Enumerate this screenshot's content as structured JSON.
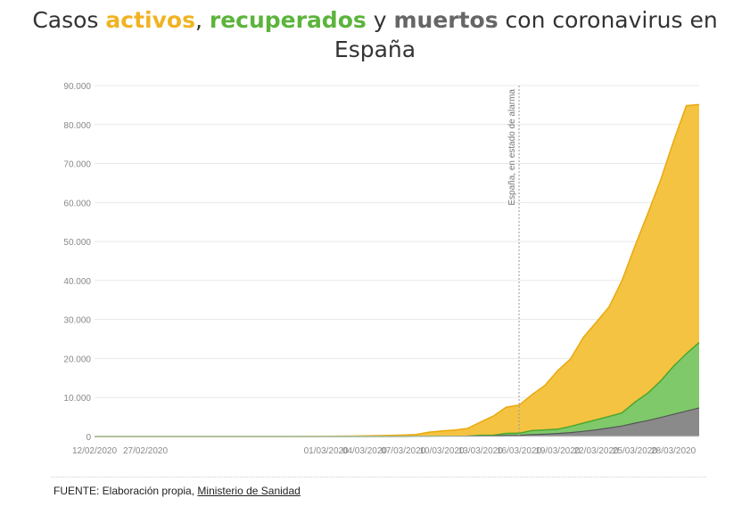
{
  "title": {
    "prefix": "Casos ",
    "word_activos": "activos",
    "comma": ", ",
    "word_recuperados": "recuperados",
    "y": " y ",
    "word_muertos": "muertos",
    "suffix_line1": " con coronavirus en",
    "line2": "España"
  },
  "colors": {
    "activos": "#f5c342",
    "activos_title": "#f0b323",
    "recuperados": "#7fc96b",
    "recuperados_title": "#5cb43c",
    "muertos": "#8a8a8a",
    "muertos_title": "#666666",
    "grid": "#e8e8e8",
    "annotation": "#999999"
  },
  "footer": {
    "prefix": "FUENTE: Elaboración propia, ",
    "link": "Ministerio de Sanidad"
  },
  "chart_data": {
    "type": "area",
    "stacked": true,
    "x": [
      "12/02/2020",
      "13/02/2020",
      "14/02/2020",
      "15/02/2020",
      "16/02/2020",
      "17/02/2020",
      "18/02/2020",
      "19/02/2020",
      "20/02/2020",
      "21/02/2020",
      "22/02/2020",
      "23/02/2020",
      "24/02/2020",
      "25/02/2020",
      "26/02/2020",
      "27/02/2020",
      "28/02/2020",
      "29/02/2020",
      "01/03/2020",
      "02/03/2020",
      "03/03/2020",
      "04/03/2020",
      "05/03/2020",
      "06/03/2020",
      "07/03/2020",
      "08/03/2020",
      "09/03/2020",
      "10/03/2020",
      "11/03/2020",
      "12/03/2020",
      "13/03/2020",
      "14/03/2020",
      "15/03/2020",
      "16/03/2020",
      "17/03/2020",
      "18/03/2020",
      "19/03/2020",
      "20/03/2020",
      "21/03/2020",
      "22/03/2020",
      "23/03/2020",
      "24/03/2020",
      "25/03/2020",
      "26/03/2020",
      "27/03/2020",
      "28/03/2020",
      "29/03/2020",
      "30/03/2020"
    ],
    "x_tick_labels": [
      "12/02/2020",
      "27/02/2020",
      "01/03/2020",
      "04/03/2020",
      "07/03/2020",
      "10/03/2020",
      "13/03/2020",
      "16/03/2020",
      "19/03/2020",
      "22/03/2020",
      "25/03/2020",
      "28/03/2020"
    ],
    "y_tick_labels": [
      "0",
      "10.000",
      "20.000",
      "30.000",
      "40.000",
      "50.000",
      "60.000",
      "70.000",
      "80.000",
      "90.000"
    ],
    "ylim": [
      0,
      90000
    ],
    "grid": true,
    "series": [
      {
        "name": "muertos",
        "values": [
          0,
          0,
          0,
          0,
          0,
          0,
          0,
          0,
          0,
          0,
          0,
          0,
          0,
          0,
          0,
          0,
          0,
          0,
          0,
          0,
          0,
          2,
          3,
          5,
          10,
          17,
          28,
          35,
          54,
          84,
          120,
          136,
          288,
          309,
          491,
          598,
          767,
          1002,
          1326,
          1720,
          2182,
          2696,
          3434,
          4089,
          4858,
          5690,
          6528,
          7340
        ]
      },
      {
        "name": "recuperados",
        "values": [
          0,
          0,
          0,
          0,
          0,
          0,
          0,
          0,
          0,
          0,
          0,
          0,
          0,
          0,
          0,
          0,
          0,
          0,
          0,
          0,
          0,
          0,
          0,
          0,
          0,
          0,
          0,
          0,
          0,
          0,
          189,
          193,
          517,
          530,
          1028,
          1081,
          1107,
          1588,
          2125,
          2575,
          2950,
          3355,
          5367,
          7015,
          9357,
          12285,
          14709,
          16780
        ]
      },
      {
        "name": "activos",
        "values": [
          2,
          2,
          2,
          2,
          2,
          2,
          2,
          2,
          2,
          2,
          2,
          2,
          2,
          2,
          2,
          2,
          23,
          30,
          50,
          90,
          120,
          180,
          220,
          280,
          360,
          500,
          1100,
          1400,
          1620,
          2000,
          3400,
          4900,
          6700,
          7200,
          9200,
          11400,
          15000,
          17300,
          22000,
          25000,
          28100,
          33900,
          40000,
          46000,
          51500,
          57600,
          63600,
          61000
        ]
      }
    ],
    "annotations": [
      {
        "x": "16/03/2020",
        "text": "España, en estado de alarma"
      }
    ]
  }
}
